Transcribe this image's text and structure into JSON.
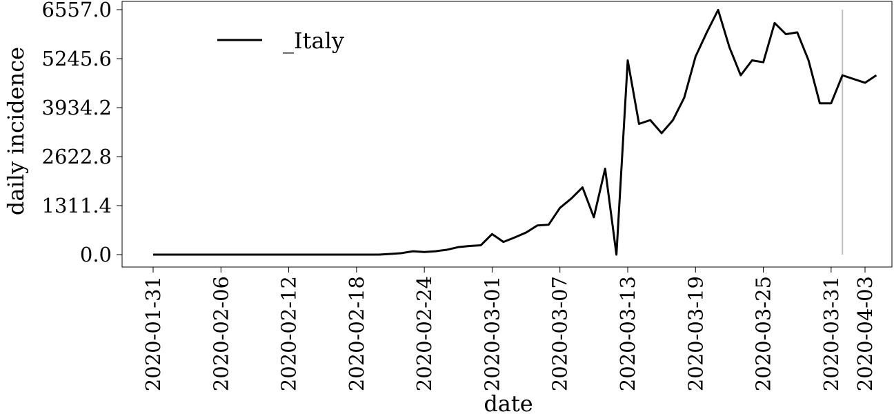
{
  "chart_data": {
    "type": "line",
    "xlabel": "date",
    "ylabel": "daily incidence",
    "ylim": [
      0,
      6557.0
    ],
    "yticks": [
      "0.0",
      "1311.4",
      "2622.8",
      "3934.2",
      "5245.6",
      "6557.0"
    ],
    "xticks": [
      "2020-01-31",
      "2020-02-06",
      "2020-02-12",
      "2020-02-18",
      "2020-02-24",
      "2020-03-01",
      "2020-03-07",
      "2020-03-13",
      "2020-03-19",
      "2020-03-25",
      "2020-03-31",
      "2020-04-03"
    ],
    "xrange": [
      "2020-01-31",
      "2020-04-03"
    ],
    "grid": false,
    "legend_position": "top-left",
    "marker_line": {
      "date": "2020-04-01",
      "color": "#c0c0c0"
    },
    "series": [
      {
        "name": "_Italy",
        "color": "#000000",
        "x": [
          "2020-01-31",
          "2020-02-01",
          "2020-02-02",
          "2020-02-03",
          "2020-02-04",
          "2020-02-05",
          "2020-02-06",
          "2020-02-07",
          "2020-02-08",
          "2020-02-09",
          "2020-02-10",
          "2020-02-11",
          "2020-02-12",
          "2020-02-13",
          "2020-02-14",
          "2020-02-15",
          "2020-02-16",
          "2020-02-17",
          "2020-02-18",
          "2020-02-19",
          "2020-02-20",
          "2020-02-21",
          "2020-02-22",
          "2020-02-23",
          "2020-02-24",
          "2020-02-25",
          "2020-02-26",
          "2020-02-27",
          "2020-02-28",
          "2020-02-29",
          "2020-03-01",
          "2020-03-02",
          "2020-03-03",
          "2020-03-04",
          "2020-03-05",
          "2020-03-06",
          "2020-03-07",
          "2020-03-08",
          "2020-03-09",
          "2020-03-10",
          "2020-03-11",
          "2020-03-12",
          "2020-03-13",
          "2020-03-14",
          "2020-03-15",
          "2020-03-16",
          "2020-03-17",
          "2020-03-18",
          "2020-03-19",
          "2020-03-20",
          "2020-03-21",
          "2020-03-22",
          "2020-03-23",
          "2020-03-24",
          "2020-03-25",
          "2020-03-26",
          "2020-03-27",
          "2020-03-28",
          "2020-03-29",
          "2020-03-30",
          "2020-03-31",
          "2020-04-01",
          "2020-04-02",
          "2020-04-03",
          "2020-04-04"
        ],
        "values": [
          0,
          0,
          0,
          0,
          0,
          0,
          0,
          0,
          0,
          0,
          0,
          0,
          0,
          0,
          0,
          0,
          0,
          0,
          0,
          0,
          0,
          18,
          40,
          90,
          70,
          90,
          130,
          200,
          230,
          250,
          550,
          340,
          460,
          590,
          780,
          800,
          1250,
          1500,
          1800,
          1000,
          2300,
          0,
          5200,
          3500,
          3600,
          3250,
          3600,
          4200,
          5300,
          5950,
          6550,
          5550,
          4800,
          5200,
          5150,
          6200,
          5900,
          5950,
          5200,
          4050,
          4050,
          4800,
          4700,
          4600,
          4800
        ]
      }
    ]
  }
}
